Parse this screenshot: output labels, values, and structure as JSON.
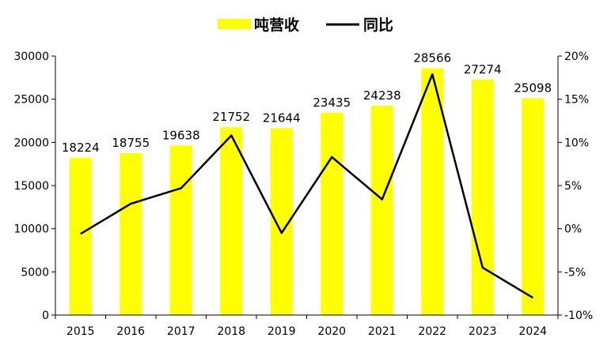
{
  "chart_data": {
    "type": "bar",
    "categories": [
      "2015",
      "2016",
      "2017",
      "2018",
      "2019",
      "2020",
      "2021",
      "2022",
      "2023",
      "2024"
    ],
    "series": [
      {
        "name": "吨营收",
        "type": "bar",
        "axis": "left",
        "color": "#FFFF00",
        "values": [
          18224,
          18755,
          19638,
          21752,
          21644,
          23435,
          24238,
          28566,
          27274,
          25098
        ]
      },
      {
        "name": "同比",
        "type": "line",
        "axis": "right",
        "color": "#000000",
        "values": [
          -0.6,
          2.9,
          4.7,
          10.8,
          -0.5,
          8.3,
          3.4,
          17.9,
          -4.5,
          -8.0
        ]
      }
    ],
    "y_left": {
      "min": 0,
      "max": 30000,
      "ticks": [
        "0",
        "5000",
        "10000",
        "15000",
        "20000",
        "25000",
        "30000"
      ]
    },
    "y_right": {
      "min": -10,
      "max": 20,
      "ticks": [
        "-10%",
        "-5%",
        "0%",
        "5%",
        "10%",
        "15%",
        "20%"
      ]
    },
    "legend_position": "top",
    "grid": false,
    "title": "",
    "xlabel": "",
    "ylabel": ""
  }
}
